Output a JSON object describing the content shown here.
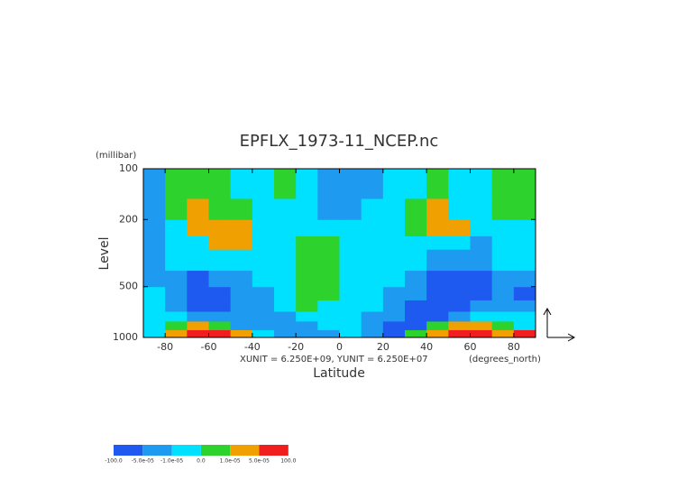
{
  "chart_data": {
    "type": "contour",
    "title": "EPFLX_1973-11_NCEP.nc",
    "xlabel": "Latitude",
    "ylabel": "Level",
    "yunits": "(millibar)",
    "xunits": "(degrees_north)",
    "note": "XUNIT = 6.250E+09, YUNIT = 6.250E+07",
    "xlim": [
      -90,
      90
    ],
    "xticks": [
      -80,
      -60,
      -40,
      -20,
      0,
      20,
      40,
      60,
      80
    ],
    "ylim": [
      1000,
      100
    ],
    "yticks": [
      100,
      200,
      500,
      1000
    ],
    "ylog": true,
    "x_edges": [
      -90,
      -80,
      -70,
      -60,
      -50,
      -40,
      -30,
      -20,
      -10,
      0,
      10,
      20,
      30,
      40,
      50,
      60,
      70,
      80,
      90
    ],
    "y_edges": [
      1000,
      900,
      800,
      700,
      600,
      500,
      400,
      300,
      250,
      200,
      150,
      100
    ],
    "z": [
      [
        -5e-06,
        3e-05,
        0.0001,
        0.0001,
        3e-05,
        -5e-06,
        -3e-05,
        -3e-05,
        -3e-05,
        -5e-06,
        -3e-05,
        -0.0001,
        5e-06,
        3e-05,
        0.0001,
        0.0001,
        3e-05,
        0.0001
      ],
      [
        -5e-06,
        5e-06,
        3e-05,
        5e-06,
        -3e-05,
        -3e-05,
        -3e-05,
        -3e-05,
        -5e-06,
        -5e-06,
        -3e-05,
        -0.0001,
        -0.0001,
        5e-06,
        3e-05,
        3e-05,
        5e-06,
        -5e-06
      ],
      [
        -5e-06,
        -5e-06,
        -3e-05,
        -3e-05,
        -3e-05,
        -3e-05,
        -3e-05,
        -5e-06,
        -5e-06,
        -5e-06,
        -3e-05,
        -3e-05,
        -0.0001,
        -0.0001,
        -3e-05,
        -5e-06,
        -5e-06,
        -5e-06
      ],
      [
        -5e-06,
        -3e-05,
        -0.0001,
        -0.0001,
        -3e-05,
        -3e-05,
        -5e-06,
        5e-06,
        -5e-06,
        -5e-06,
        -5e-06,
        -3e-05,
        -0.0001,
        -0.0001,
        -0.0001,
        -3e-05,
        -3e-05,
        -3e-05
      ],
      [
        -5e-06,
        -3e-05,
        -0.0001,
        -0.0001,
        -3e-05,
        -3e-05,
        -5e-06,
        5e-06,
        5e-06,
        -5e-06,
        -5e-06,
        -3e-05,
        -3e-05,
        -0.0001,
        -0.0001,
        -0.0001,
        -3e-05,
        -0.0001
      ],
      [
        -3e-05,
        -3e-05,
        -0.0001,
        -3e-05,
        -3e-05,
        -5e-06,
        -5e-06,
        5e-06,
        5e-06,
        -5e-06,
        -5e-06,
        -5e-06,
        -3e-05,
        -0.0001,
        -0.0001,
        -0.0001,
        -3e-05,
        -3e-05
      ],
      [
        -3e-05,
        -5e-06,
        -5e-06,
        -5e-06,
        -5e-06,
        -5e-06,
        -5e-06,
        5e-06,
        5e-06,
        -5e-06,
        -5e-06,
        -5e-06,
        -5e-06,
        -3e-05,
        -3e-05,
        -3e-05,
        -5e-06,
        -5e-06
      ],
      [
        -3e-05,
        -5e-06,
        -5e-06,
        3e-05,
        3e-05,
        -5e-06,
        -5e-06,
        5e-06,
        5e-06,
        -5e-06,
        -5e-06,
        -5e-06,
        -5e-06,
        -5e-06,
        -5e-06,
        -3e-05,
        -5e-06,
        -5e-06
      ],
      [
        -3e-05,
        -5e-06,
        3e-05,
        3e-05,
        3e-05,
        -5e-06,
        -5e-06,
        -5e-06,
        -5e-06,
        -5e-06,
        -5e-06,
        -5e-06,
        5e-06,
        3e-05,
        3e-05,
        -5e-06,
        -5e-06,
        -5e-06
      ],
      [
        -3e-05,
        5e-06,
        3e-05,
        5e-06,
        5e-06,
        -5e-06,
        -5e-06,
        -5e-06,
        -3e-05,
        -3e-05,
        -5e-06,
        -5e-06,
        5e-06,
        3e-05,
        -5e-06,
        -5e-06,
        5e-06,
        5e-06
      ],
      [
        -3e-05,
        5e-06,
        5e-06,
        5e-06,
        -5e-06,
        -5e-06,
        5e-06,
        -5e-06,
        -3e-05,
        -3e-05,
        -3e-05,
        -5e-06,
        -5e-06,
        5e-06,
        -5e-06,
        -5e-06,
        5e-06,
        5e-06
      ]
    ],
    "levels": [
      {
        "value": -100,
        "label": "-100.0"
      },
      {
        "value": -5e-05,
        "label": "-5.0e-05"
      },
      {
        "value": -1e-05,
        "label": "-1.0e-05"
      },
      {
        "value": 0,
        "label": "0.0"
      },
      {
        "value": 1e-05,
        "label": "1.0e-05"
      },
      {
        "value": 5e-05,
        "label": "5.0e-05"
      },
      {
        "value": 100,
        "label": "100.0"
      }
    ],
    "colors": [
      "#1e5af0",
      "#1e9bf0",
      "#00e1ff",
      "#2dd22d",
      "#f0a000",
      "#f01e1e"
    ]
  }
}
